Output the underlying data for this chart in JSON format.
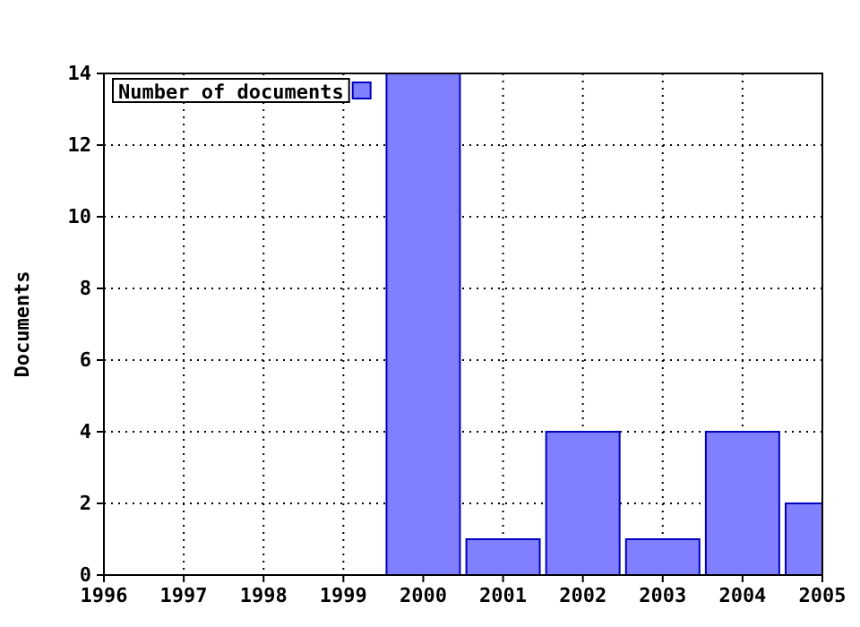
{
  "chart_data": {
    "type": "bar",
    "ylabel": "Documents",
    "x": [
      2000,
      2001,
      2002,
      2003,
      2004,
      2005
    ],
    "series": [
      {
        "name": "Number of documents",
        "color": "#8080ff",
        "values": [
          14,
          1,
          4,
          1,
          4,
          2
        ]
      }
    ],
    "xlim": [
      1996,
      2005
    ],
    "xticks": [
      1996,
      1997,
      1998,
      1999,
      2000,
      2001,
      2002,
      2003,
      2004,
      2005
    ],
    "ylim": [
      0,
      14
    ],
    "yticks": [
      0,
      2,
      4,
      6,
      8,
      10,
      12,
      14
    ],
    "grid": true,
    "legend": "top left"
  }
}
